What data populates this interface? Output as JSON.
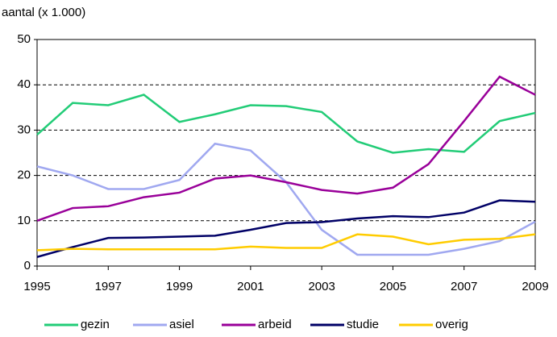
{
  "chart_data": {
    "type": "line",
    "y_label": "aantal (x 1.000)",
    "x": [
      1995,
      1996,
      1997,
      1998,
      1999,
      2000,
      2001,
      2002,
      2003,
      2004,
      2005,
      2006,
      2007,
      2008,
      2009
    ],
    "xlim": [
      1995,
      2009
    ],
    "xticks": [
      1995,
      1997,
      1999,
      2001,
      2003,
      2005,
      2007,
      2009
    ],
    "ylim": [
      0,
      50
    ],
    "yticks": [
      0,
      10,
      20,
      30,
      40,
      50
    ],
    "grid": true,
    "legend": "bottom",
    "series": [
      {
        "name": "gezin",
        "color": "#22cc77",
        "values": [
          29,
          36,
          35.5,
          37.8,
          31.8,
          33.5,
          35.5,
          35.3,
          34,
          27.5,
          25,
          25.8,
          25.2,
          32,
          33.8
        ]
      },
      {
        "name": "asiel",
        "color": "#a0a8f0",
        "values": [
          22,
          20,
          17,
          17,
          19,
          27,
          25.5,
          18.5,
          8,
          2.5,
          2.5,
          2.5,
          3.8,
          5.5,
          9.8
        ]
      },
      {
        "name": "arbeid",
        "color": "#990099",
        "values": [
          10,
          12.8,
          13.2,
          15.2,
          16.2,
          19.3,
          20,
          18.5,
          16.8,
          16,
          17.3,
          22.5,
          32,
          41.8,
          37.8
        ]
      },
      {
        "name": "studie",
        "color": "#000066",
        "values": [
          2,
          4.2,
          6.2,
          6.3,
          6.5,
          6.7,
          8,
          9.5,
          9.7,
          10.5,
          11,
          10.8,
          11.8,
          14.5,
          14.2
        ]
      },
      {
        "name": "overig",
        "color": "#ffcc00",
        "values": [
          3.5,
          3.8,
          3.7,
          3.7,
          3.7,
          3.7,
          4.3,
          4,
          4,
          7,
          6.5,
          4.8,
          5.8,
          6,
          7
        ]
      }
    ]
  }
}
